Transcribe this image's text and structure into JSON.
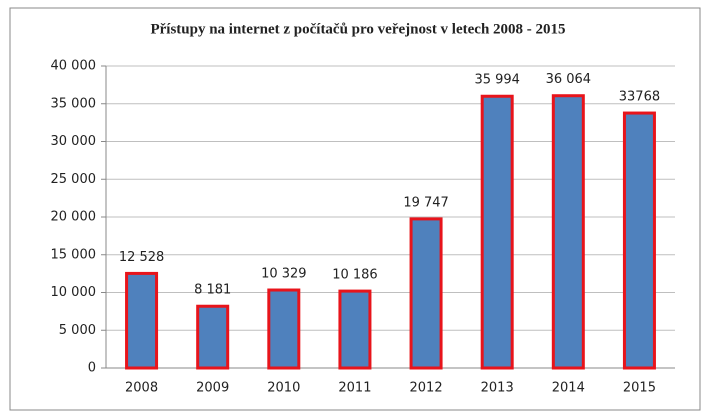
{
  "chart_data": {
    "type": "bar",
    "title": "Přístupy na internet z počítačů pro veřejnost v letech 2008 - 2015",
    "categories": [
      "2008",
      "2009",
      "2010",
      "2011",
      "2012",
      "2013",
      "2014",
      "2015"
    ],
    "values": [
      12528,
      8181,
      10329,
      10186,
      19747,
      35994,
      36064,
      33768
    ],
    "value_labels": [
      "12 528",
      "8 181",
      "10 329",
      "10 186",
      "19 747",
      "35 994",
      "36 064",
      "33768"
    ],
    "color": "#4f81bd",
    "edge_color": "#e8141b",
    "ylim": [
      0,
      40000
    ],
    "yticks": [
      0,
      {
        "value": 5000,
        "label": "5 000"
      },
      {
        "value": 10000,
        "label": "10 000"
      },
      {
        "value": 15000,
        "label": "15 000"
      },
      {
        "value": 20000,
        "label": "20 000"
      },
      {
        "value": 25000,
        "label": "25 000"
      },
      {
        "value": 30000,
        "label": "30 000"
      },
      {
        "value": 35000,
        "label": "35 000"
      },
      {
        "value": 40000,
        "label": "40 000"
      }
    ],
    "grid": true
  }
}
